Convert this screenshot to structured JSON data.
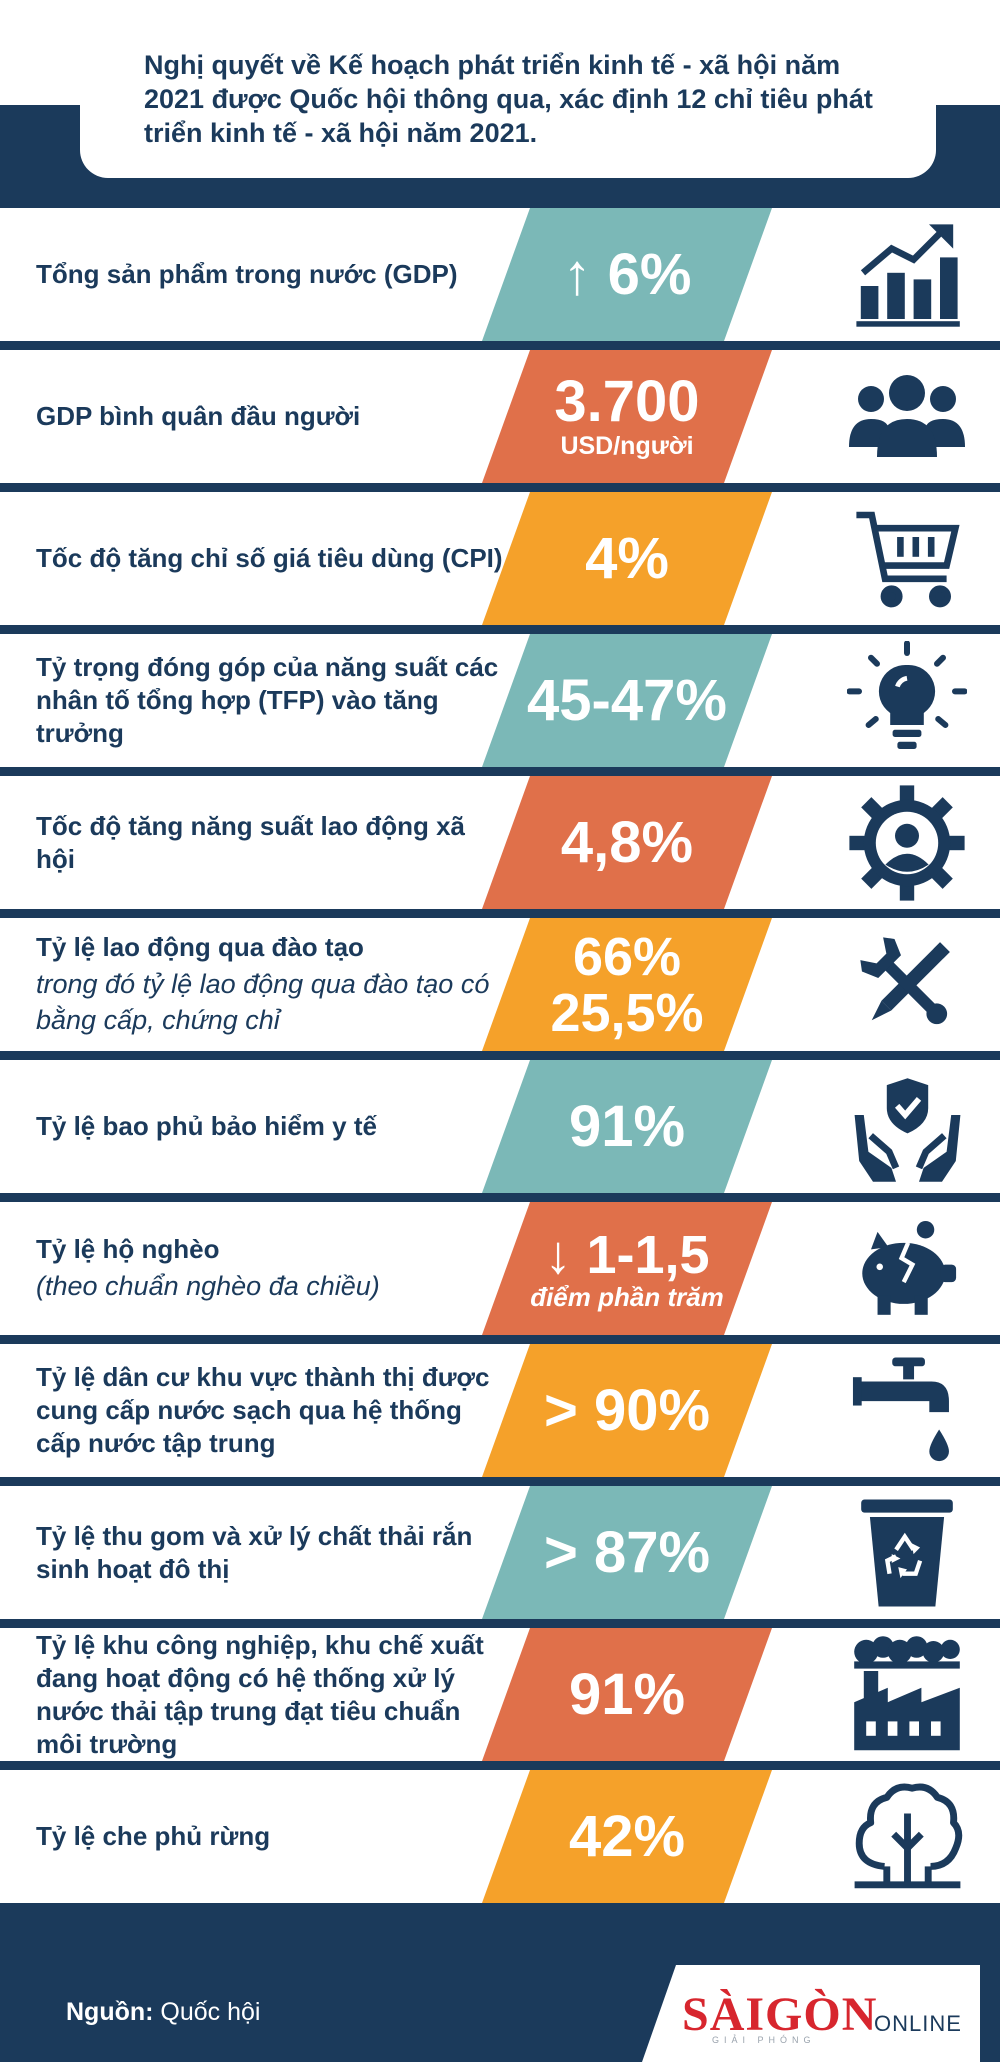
{
  "intro": "Nghị quyết về Kế hoạch phát triển kinh tế - xã hội năm 2021 được Quốc hội thông qua, xác định 12 chỉ tiêu phát triển kinh tế - xã hội năm 2021.",
  "colors": {
    "navy": "#1b3a5b",
    "teal": "#7bb8b7",
    "coral": "#e0704a",
    "orange": "#f5a12a"
  },
  "rows": [
    {
      "label": "Tổng sản phẩm trong nước (GDP)",
      "value": "6%",
      "arrow": "↑",
      "icon": "bar-chart-growth-icon",
      "color": "teal"
    },
    {
      "label": "GDP bình quân đầu người",
      "value": "3.700",
      "unit": "USD/người",
      "icon": "people-group-icon",
      "color": "coral"
    },
    {
      "label": "Tốc độ tăng chỉ số giá tiêu dùng (CPI)",
      "value": "4%",
      "icon": "shopping-cart-icon",
      "color": "orange"
    },
    {
      "label": "Tỷ trọng đóng góp của năng suất các nhân tố tổng hợp (TFP) vào tăng trưởng",
      "value": "45-47%",
      "icon": "lightbulb-icon",
      "color": "teal"
    },
    {
      "label": "Tốc độ tăng năng suất lao động xã hội",
      "value": "4,8%",
      "icon": "gear-person-icon",
      "color": "coral"
    },
    {
      "label": "Tỷ lệ lao động qua đào tạo",
      "sublabel": "trong đó tỷ lệ lao động qua đào tạo có bằng cấp, chứng chỉ",
      "value": "66%",
      "value2": "25,5%",
      "icon": "pencil-wrench-icon",
      "color": "orange"
    },
    {
      "label": "Tỷ lệ bao phủ bảo hiểm y tế",
      "value": "91%",
      "icon": "hands-shield-icon",
      "color": "teal"
    },
    {
      "label": "Tỷ lệ hộ nghèo",
      "sublabel": "(theo chuẩn nghèo đa chiều)",
      "value": "1-1,5",
      "arrow": "↓",
      "unit_italic": "điểm phần trăm",
      "icon": "broken-piggy-bank-icon",
      "color": "coral"
    },
    {
      "label": "Tỷ lệ dân cư khu vực thành thị được cung cấp nước sạch qua hệ thống cấp nước tập trung",
      "value": "> 90%",
      "icon": "water-tap-icon",
      "color": "orange"
    },
    {
      "label": "Tỷ lệ thu gom và xử lý chất thải rắn sinh hoạt đô thị",
      "value": "> 87%",
      "icon": "recycle-bin-icon",
      "color": "teal"
    },
    {
      "label": "Tỷ lệ khu công nghiệp, khu chế xuất đang hoạt động có hệ thống xử lý nước thải tập trung đạt tiêu chuẩn môi trường",
      "value": "91%",
      "icon": "factory-icon",
      "color": "coral"
    },
    {
      "label": "Tỷ lệ che phủ rừng",
      "value": "42%",
      "icon": "forest-tree-icon",
      "color": "orange"
    }
  ],
  "footer": {
    "source_label": "Nguồn:",
    "source_value": "Quốc hội",
    "logo": "SÀIGÒN",
    "logo_online": "ONLINE",
    "logo_sub": "GIẢI PHÓNG"
  }
}
